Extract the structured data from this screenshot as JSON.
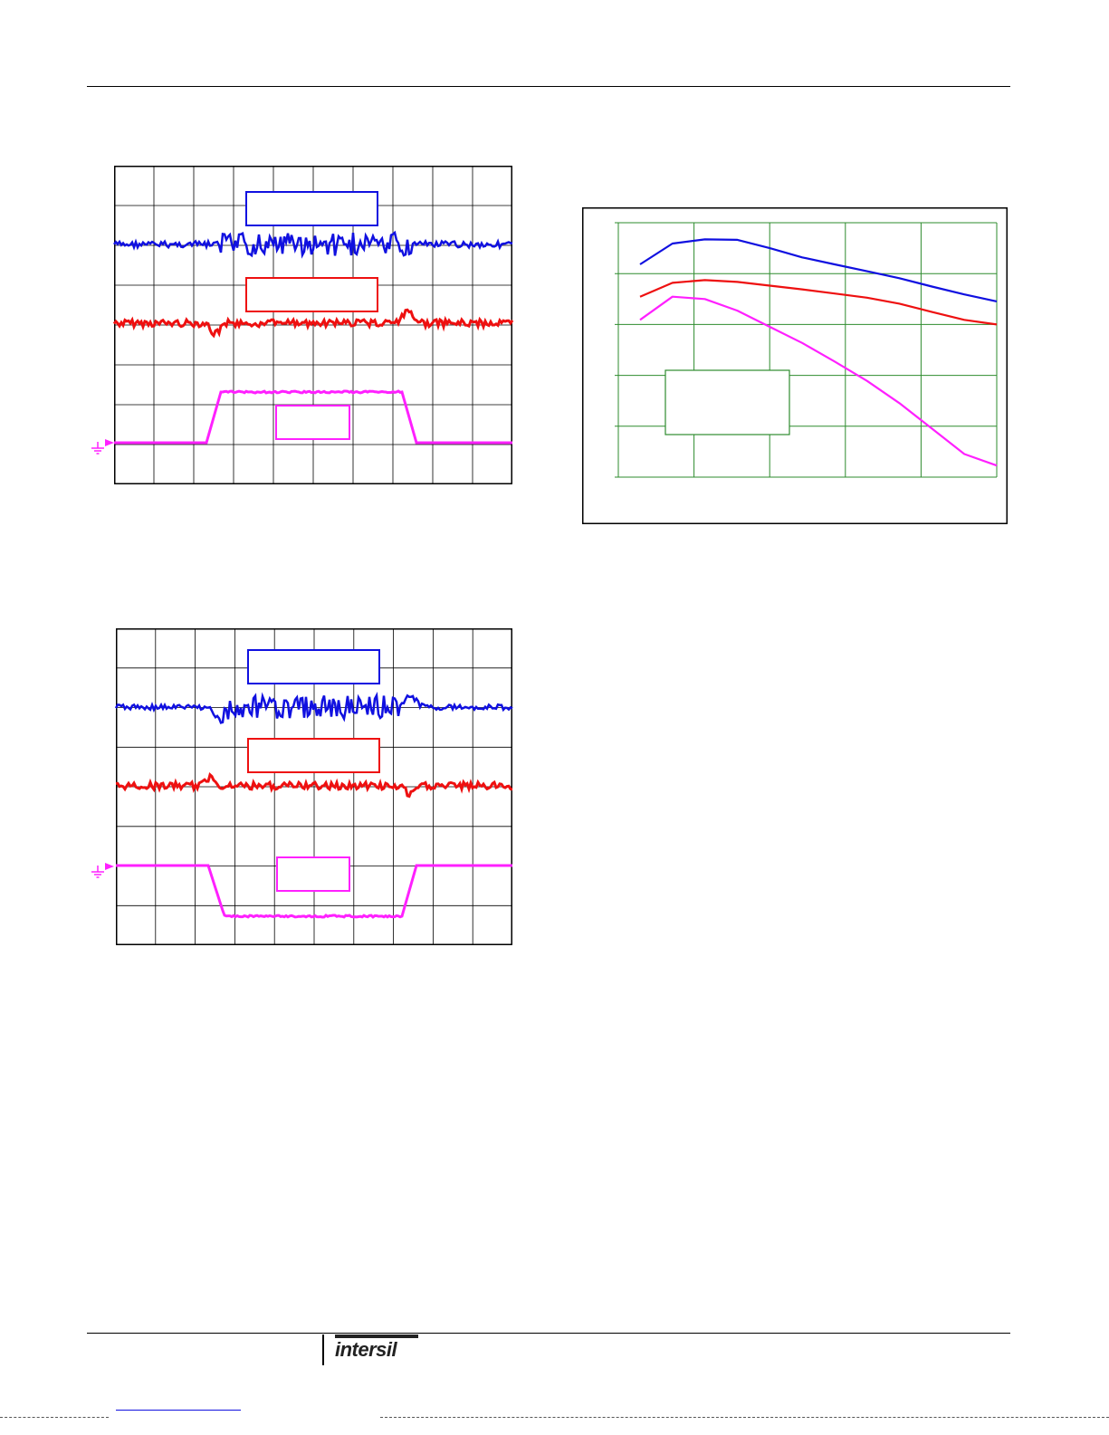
{
  "footer": {
    "brand": "intersil"
  },
  "chart_data": [
    {
      "type": "line",
      "series": [
        {
          "color": "#1010e0"
        },
        {
          "color": "#ee1010"
        },
        {
          "color": "#ff20ff"
        }
      ]
    },
    {
      "type": "line",
      "series": [
        {
          "color": "#1010e0"
        },
        {
          "color": "#ee1010"
        },
        {
          "color": "#ff20ff"
        }
      ]
    },
    {
      "type": "line",
      "grid": true,
      "grid_color": "#2e8b2e",
      "series": [
        {
          "color": "#1010e0",
          "values": [
            0.86,
            0.905,
            0.914,
            0.913,
            0.895,
            0.875,
            0.86,
            0.845,
            0.83,
            0.812,
            0.795,
            0.78
          ]
        },
        {
          "color": "#ee1010",
          "values": [
            0.79,
            0.82,
            0.826,
            0.822,
            0.814,
            0.806,
            0.797,
            0.788,
            0.775,
            0.757,
            0.74,
            0.73
          ]
        },
        {
          "color": "#ff20ff",
          "values": [
            0.74,
            0.79,
            0.785,
            0.76,
            0.725,
            0.69,
            0.65,
            0.608,
            0.56,
            0.505,
            0.45,
            0.425
          ]
        }
      ]
    }
  ]
}
